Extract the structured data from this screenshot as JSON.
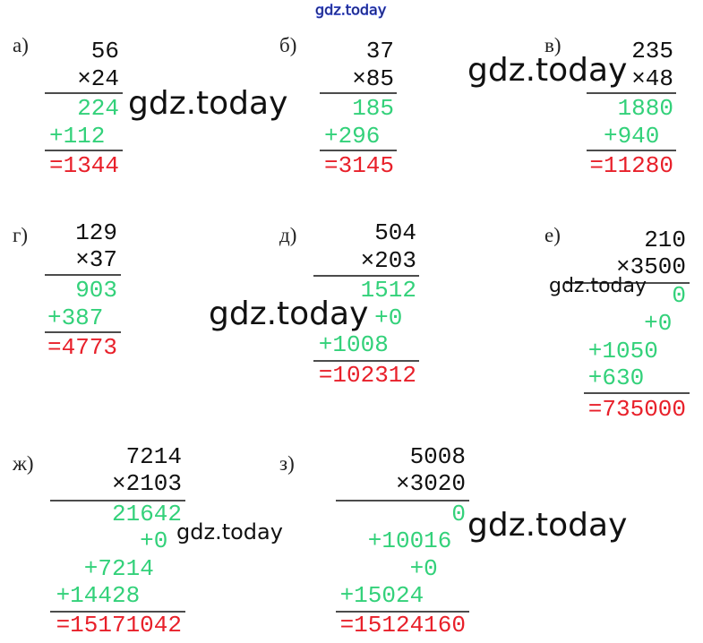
{
  "watermarks": [
    "gdz.today",
    "gdz.today",
    "gdz.today",
    "gdz.today",
    "gdz.today",
    "gdz.today",
    "gdz.today"
  ],
  "problems": [
    {
      "label": "а)",
      "rows": [
        "56",
        "×24",
        "224",
        "+112",
        "=1344"
      ]
    },
    {
      "label": "б)",
      "rows": [
        "37",
        "×85",
        "185",
        "+296",
        "=3145"
      ]
    },
    {
      "label": "в)",
      "rows": [
        "235",
        "×48",
        "1880",
        "+940",
        "=11280"
      ]
    },
    {
      "label": "г)",
      "rows": [
        "129",
        "×37",
        "903",
        "+387",
        "=4773"
      ]
    },
    {
      "label": "д)",
      "rows": [
        "504",
        "×203",
        "1512",
        "+0",
        "+1008",
        "=102312"
      ]
    },
    {
      "label": "е)",
      "rows": [
        "210",
        "×3500",
        "0",
        "+0",
        "+1050",
        "+630",
        "=735000"
      ]
    },
    {
      "label": "ж)",
      "rows": [
        "7214",
        "×2103",
        "21642",
        "+0",
        "+7214",
        "+14428",
        "=15171042"
      ]
    },
    {
      "label": "з)",
      "rows": [
        "5008",
        "×3020",
        "0",
        "+10016",
        "+0",
        "+15024",
        "=15124160"
      ]
    }
  ]
}
